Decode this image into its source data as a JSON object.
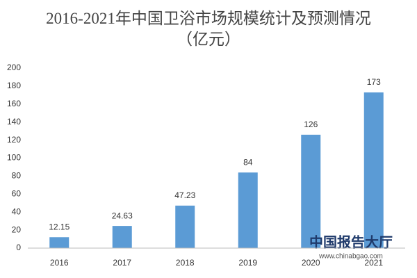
{
  "chart_data": {
    "type": "bar",
    "title": "2016-2021年中国卫浴市场规模统计及预测情况（亿元）",
    "categories": [
      "2016",
      "2017",
      "2018",
      "2019",
      "2020",
      "2021"
    ],
    "values": [
      12.15,
      24.63,
      47.23,
      84,
      126,
      173
    ],
    "value_labels": [
      "12.15",
      "24.63",
      "47.23",
      "84",
      "126",
      "173"
    ],
    "color": "#5b9bd5",
    "ylim": [
      0,
      200
    ],
    "yticks": [
      0,
      20,
      40,
      60,
      80,
      100,
      120,
      140,
      160,
      180,
      200
    ],
    "grid": false,
    "watermark": {
      "name": "中国报告大厅",
      "url": "www.chinabgao.com"
    }
  }
}
